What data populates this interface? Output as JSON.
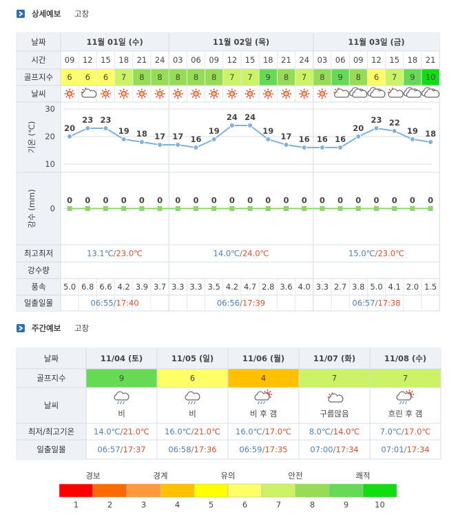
{
  "detail": {
    "title": "상세예보",
    "location": "고창",
    "labels": {
      "date": "날짜",
      "time": "시간",
      "golf": "골프지수",
      "weather": "날씨",
      "minmax": "최고최저",
      "rain": "강수량",
      "wind": "풍속",
      "sun": "일출일몰"
    },
    "days": [
      {
        "date": "11월 01일 (수)",
        "hours": [
          "09",
          "12",
          "15",
          "18",
          "21",
          "24"
        ],
        "minmax": "13.1℃/23.0℃",
        "sun": "06:55/17:40"
      },
      {
        "date": "11월 02일 (목)",
        "hours": [
          "03",
          "06",
          "09",
          "12",
          "15",
          "18",
          "21",
          "24"
        ],
        "minmax": "14.0℃/24.0℃",
        "sun": "06:56/17:39"
      },
      {
        "date": "11월 03일 (금)",
        "hours": [
          "03",
          "06",
          "09",
          "12",
          "15",
          "18",
          "21"
        ],
        "minmax": "15.0℃/23.0℃",
        "sun": "06:57/17:38"
      }
    ],
    "golf": [
      6,
      6,
      6,
      7,
      8,
      8,
      8,
      8,
      8,
      7,
      7,
      9,
      8,
      7,
      8,
      9,
      8,
      6,
      7,
      9,
      10
    ],
    "wind": [
      "5.0",
      "6.8",
      "6.6",
      "4.2",
      "3.9",
      "3.7",
      "3.3",
      "3.3",
      "3.5",
      "4.2",
      "4.7",
      "2.8",
      "3.6",
      "4.0",
      "3.3",
      "2.7",
      "3.8",
      "5.0",
      "4.1",
      "2.0",
      "1.5"
    ],
    "temp_chart": {
      "type": "line",
      "axis_label": "기온 (℃)",
      "color": "#7eb0e0",
      "ylim": [
        7,
        32.5
      ],
      "yticks": [
        10,
        20,
        30
      ],
      "values": [
        20,
        23,
        23,
        19,
        18,
        17,
        17,
        16,
        19,
        24,
        24,
        19,
        17,
        16,
        16,
        16,
        20,
        23,
        22,
        19,
        18
      ]
    },
    "rain_chart": {
      "type": "line",
      "axis_label": "강수 (mm)",
      "color": "#8fd46f",
      "ylim": [
        -1,
        1
      ],
      "yticks": [
        0
      ],
      "values": [
        0,
        0,
        0,
        0,
        0,
        0,
        0,
        0,
        0,
        0,
        0,
        0,
        0,
        0,
        0,
        0,
        0,
        0,
        0,
        0,
        0
      ]
    }
  },
  "weekly": {
    "title": "주간예보",
    "location": "고창",
    "labels": {
      "date": "날짜",
      "golf": "골프지수",
      "weather": "날씨",
      "minmax": "최저/최고기온",
      "sun": "일출일몰"
    },
    "days": [
      {
        "date": "11/04 (토)",
        "golf": 9,
        "weather": "비",
        "minmax": "14.0℃/21.0℃",
        "sun": "06:57/17:37"
      },
      {
        "date": "11/05 (일)",
        "golf": 6,
        "weather": "비",
        "minmax": "16.0℃/21.0℃",
        "sun": "06:58/17:36"
      },
      {
        "date": "11/06 (월)",
        "golf": 4,
        "weather": "비 후 갬",
        "minmax": "16.0℃/17.0℃",
        "sun": "06:59/17:35"
      },
      {
        "date": "11/07 (화)",
        "golf": 7,
        "weather": "구름많음",
        "minmax": "8.0℃/14.0℃",
        "sun": "07:00/17:34"
      },
      {
        "date": "11/08 (수)",
        "golf": 7,
        "weather": "흐린 후 갬",
        "minmax": "7.0℃/17.0℃",
        "sun": "07:01/17:34"
      }
    ]
  },
  "legend": {
    "groups": [
      "경보",
      "경계",
      "유의",
      "안전",
      "쾌적"
    ],
    "levels": [
      1,
      2,
      3,
      4,
      5,
      6,
      7,
      8,
      9,
      10
    ],
    "colors": [
      "#ff0000",
      "#ff6a00",
      "#ff9a3c",
      "#ffc000",
      "#ffff00",
      "#ffff66",
      "#ccf266",
      "#96dc55",
      "#66d955",
      "#11dd11"
    ]
  }
}
